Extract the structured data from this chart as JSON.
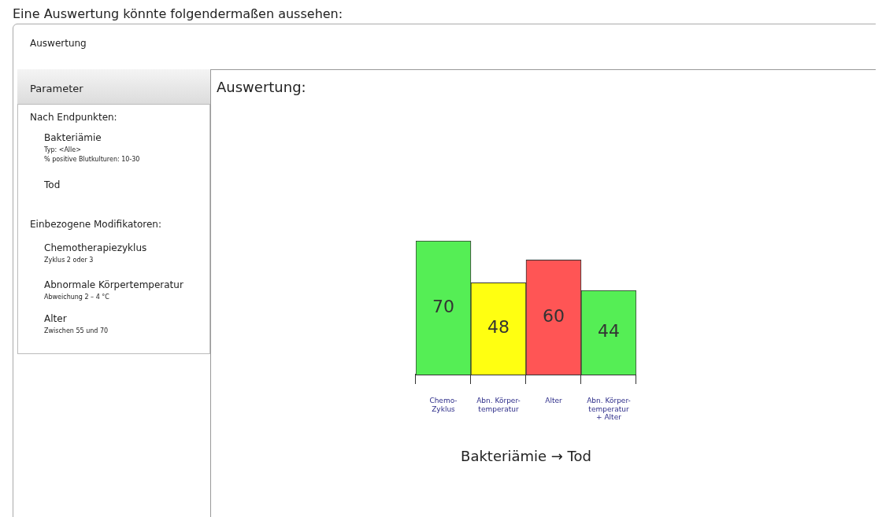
{
  "chart_data": {
    "type": "bar",
    "title": "Auswertung:",
    "xlabel": "Bakteriämie → Tod",
    "categories": [
      "Chemo-\nZyklus",
      "Abn. Körper-\ntemperatur",
      "Alter",
      "Abn. Körper-\ntemperatur\n+ Alter"
    ],
    "values": [
      70,
      48,
      60,
      44
    ],
    "colors": [
      "#55ee55",
      "#ffff11",
      "#ff5555",
      "#55ee55"
    ],
    "data_labels": true,
    "grid": false,
    "legend": false,
    "annotations": [
      "Eine Auswertung könnte folgendermaßen aussehen:",
      "Auswertung",
      "Parameter",
      "Nach Endpunkten:",
      "Bakteriämie",
      "Typ: <Alle>",
      "% positive Blutkulturen: 10-30",
      "Tod",
      "Einbezogene Modifikatoren:",
      "Chemotherapiezyklus",
      "Zyklus 2 oder 3",
      "Abnormale Körpertemperatur",
      "Abweichung 2 – 4 °C",
      "Alter",
      "Zwischen 55 und 70"
    ]
  }
}
